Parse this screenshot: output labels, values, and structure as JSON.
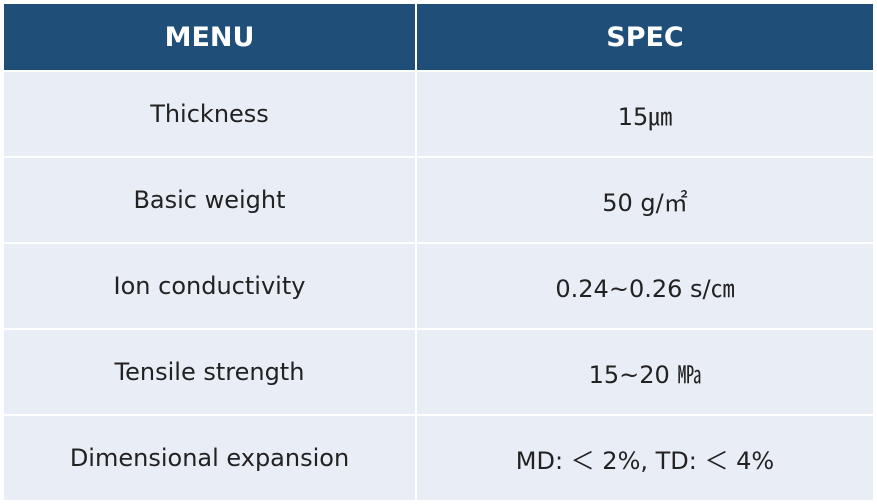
{
  "table": {
    "header": [
      "MENU",
      "SPEC"
    ],
    "rows": [
      [
        "Thickness",
        "15㎛"
      ],
      [
        "Basic weight",
        "50 g/㎡"
      ],
      [
        "Ion conductivity",
        "0.24~0.26 s/㎝"
      ],
      [
        "Tensile strength",
        "15~20 ㎫"
      ],
      [
        "Dimensional expansion",
        "MD: ＜ 2%, TD: ＜ 4%"
      ]
    ]
  }
}
